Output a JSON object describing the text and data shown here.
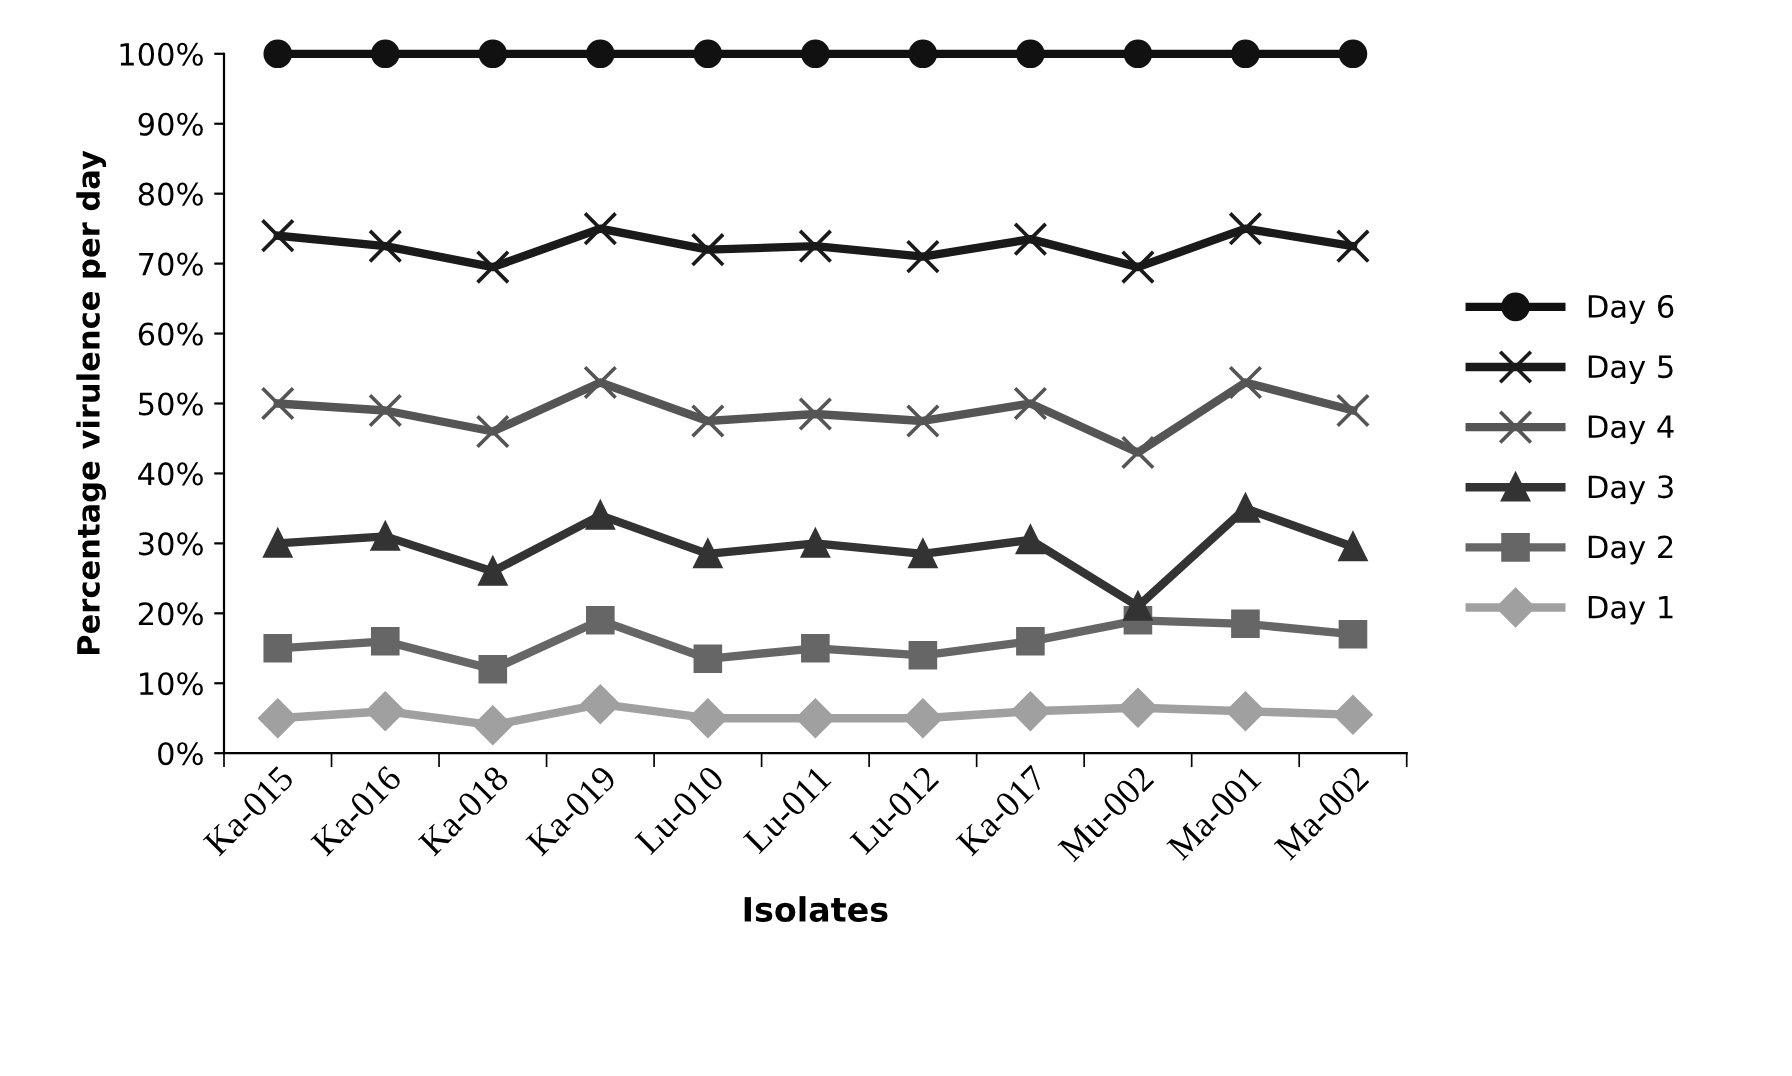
{
  "chart_data": {
    "type": "line",
    "xlabel": "Isolates",
    "ylabel": "Percentage virulence per day",
    "categories": [
      "Ka-015",
      "Ka-016",
      "Ka-018",
      "Ka-019",
      "Lu-010",
      "Lu-011",
      "Lu-012",
      "Ka-017",
      "Mu-002",
      "Ma-001",
      "Ma-002"
    ],
    "series": [
      {
        "name": "Day 6",
        "color": "#111111",
        "marker": "circle",
        "values": [
          100,
          100,
          100,
          100,
          100,
          100,
          100,
          100,
          100,
          100,
          100
        ]
      },
      {
        "name": "Day 5",
        "color": "#1a1a1a",
        "marker": "cross",
        "values": [
          74,
          72.5,
          69.5,
          75,
          72,
          72.5,
          71,
          73.5,
          69.5,
          75,
          72.5
        ]
      },
      {
        "name": "Day 4",
        "color": "#555555",
        "marker": "cross",
        "values": [
          50,
          49,
          46,
          53,
          47.5,
          48.5,
          47.5,
          50,
          43,
          53,
          49
        ]
      },
      {
        "name": "Day 3",
        "color": "#333333",
        "marker": "triangle",
        "values": [
          30,
          31,
          26,
          34,
          28.5,
          30,
          28.5,
          30.5,
          21,
          35,
          29.5
        ]
      },
      {
        "name": "Day 2",
        "color": "#666666",
        "marker": "square",
        "values": [
          15,
          16,
          12,
          19,
          13.5,
          15,
          14,
          16,
          19,
          18.5,
          17
        ]
      },
      {
        "name": "Day 1",
        "color": "#a0a0a0",
        "marker": "diamond",
        "values": [
          5,
          6,
          4,
          7,
          5,
          5,
          5,
          6,
          6.5,
          6,
          5.5
        ]
      }
    ],
    "ylim": [
      0,
      100
    ],
    "yticks": [
      {
        "value": 0,
        "label": "0%"
      },
      {
        "value": 10,
        "label": "10%"
      },
      {
        "value": 20,
        "label": "20%"
      },
      {
        "value": 30,
        "label": "30%"
      },
      {
        "value": 40,
        "label": "40%"
      },
      {
        "value": 50,
        "label": "50%"
      },
      {
        "value": 60,
        "label": "60%"
      },
      {
        "value": 70,
        "label": "70%"
      },
      {
        "value": 80,
        "label": "80%"
      },
      {
        "value": 90,
        "label": "90%"
      },
      {
        "value": 100,
        "label": "100%"
      }
    ],
    "grid": false,
    "legend": "right",
    "line_style": "solid"
  }
}
